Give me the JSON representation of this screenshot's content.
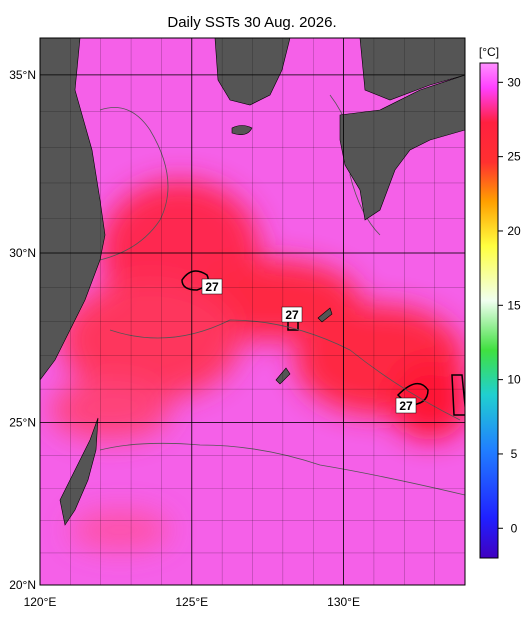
{
  "title": "Daily SSTs 30 Aug. 2026.",
  "map": {
    "projection": "mercator",
    "lonlim": [
      120,
      134
    ],
    "latlim": [
      20,
      36
    ],
    "lonticks": [
      {
        "value": 120,
        "label": "120°E"
      },
      {
        "value": 125,
        "label": "125°E"
      },
      {
        "value": 130,
        "label": "130°E"
      }
    ],
    "latticks": [
      {
        "value": 20,
        "label": "20°N"
      },
      {
        "value": 25,
        "label": "25°N"
      },
      {
        "value": 30,
        "label": "30°N"
      },
      {
        "value": 35,
        "label": "35°N"
      }
    ],
    "contour_labels": [
      "27",
      "27",
      "27"
    ]
  },
  "colorbar": {
    "unit": "[°C]",
    "range": [
      -2,
      31.3
    ],
    "ticks": [
      0,
      5,
      10,
      15,
      20,
      25,
      30
    ]
  }
}
